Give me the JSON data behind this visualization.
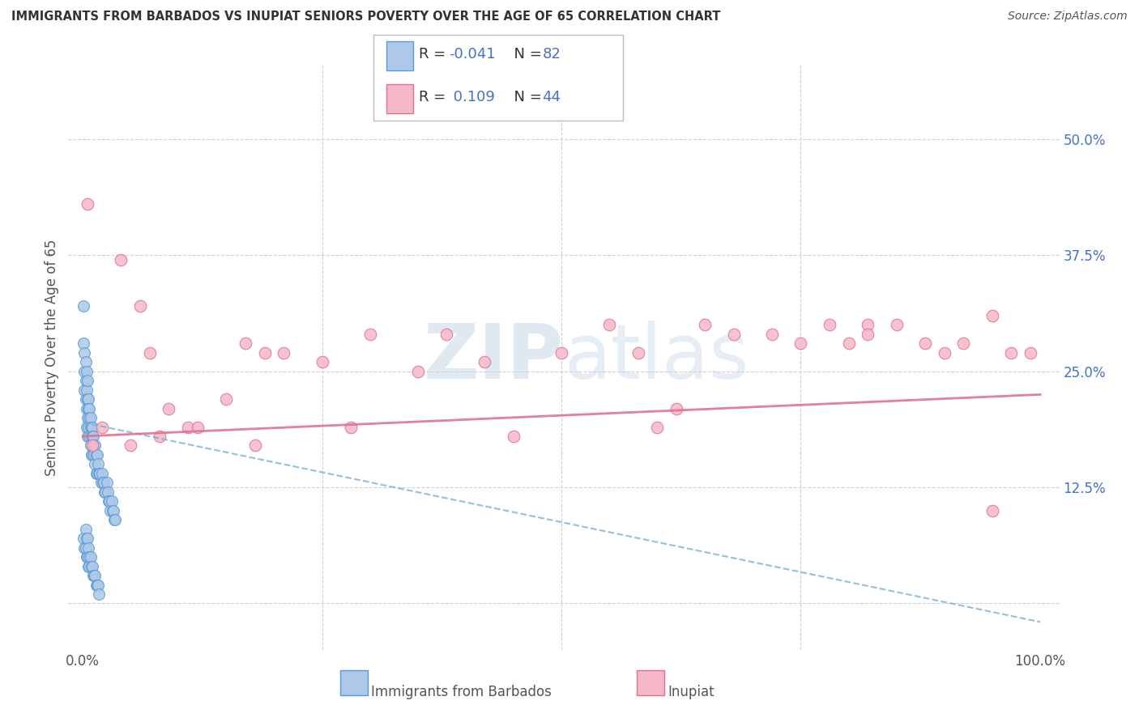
{
  "title": "IMMIGRANTS FROM BARBADOS VS INUPIAT SENIORS POVERTY OVER THE AGE OF 65 CORRELATION CHART",
  "source": "Source: ZipAtlas.com",
  "ylabel": "Seniors Poverty Over the Age of 65",
  "series1_name": "Immigrants from Barbados",
  "series1_color": "#adc8e8",
  "series1_edge_color": "#5b9bd5",
  "series1_R": -0.041,
  "series1_N": 82,
  "series2_name": "Inupiat",
  "series2_color": "#f5b8c8",
  "series2_edge_color": "#e07090",
  "series2_R": 0.109,
  "series2_N": 44,
  "trend1_color": "#7aafd4",
  "trend2_color": "#e07090",
  "background_color": "#ffffff",
  "series1_x": [
    0.001,
    0.001,
    0.002,
    0.002,
    0.002,
    0.003,
    0.003,
    0.003,
    0.004,
    0.004,
    0.004,
    0.004,
    0.005,
    0.005,
    0.005,
    0.005,
    0.006,
    0.006,
    0.006,
    0.007,
    0.007,
    0.007,
    0.008,
    0.008,
    0.008,
    0.009,
    0.009,
    0.009,
    0.01,
    0.01,
    0.01,
    0.011,
    0.011,
    0.012,
    0.012,
    0.013,
    0.013,
    0.014,
    0.014,
    0.015,
    0.015,
    0.016,
    0.017,
    0.018,
    0.019,
    0.02,
    0.021,
    0.022,
    0.023,
    0.024,
    0.025,
    0.026,
    0.027,
    0.028,
    0.029,
    0.03,
    0.031,
    0.032,
    0.033,
    0.034,
    0.001,
    0.002,
    0.003,
    0.003,
    0.004,
    0.004,
    0.005,
    0.005,
    0.006,
    0.006,
    0.007,
    0.007,
    0.008,
    0.009,
    0.01,
    0.011,
    0.012,
    0.013,
    0.014,
    0.015,
    0.016,
    0.017
  ],
  "series1_y": [
    0.32,
    0.28,
    0.27,
    0.25,
    0.23,
    0.26,
    0.24,
    0.22,
    0.25,
    0.23,
    0.21,
    0.19,
    0.24,
    0.22,
    0.2,
    0.18,
    0.22,
    0.21,
    0.19,
    0.21,
    0.2,
    0.18,
    0.2,
    0.19,
    0.17,
    0.19,
    0.18,
    0.16,
    0.19,
    0.18,
    0.16,
    0.18,
    0.17,
    0.17,
    0.16,
    0.17,
    0.15,
    0.16,
    0.14,
    0.16,
    0.14,
    0.15,
    0.14,
    0.14,
    0.13,
    0.14,
    0.13,
    0.13,
    0.12,
    0.12,
    0.13,
    0.12,
    0.11,
    0.11,
    0.1,
    0.11,
    0.1,
    0.1,
    0.09,
    0.09,
    0.07,
    0.06,
    0.08,
    0.06,
    0.07,
    0.05,
    0.07,
    0.05,
    0.06,
    0.04,
    0.05,
    0.04,
    0.05,
    0.04,
    0.04,
    0.03,
    0.03,
    0.03,
    0.02,
    0.02,
    0.02,
    0.01
  ],
  "series2_x": [
    0.005,
    0.01,
    0.04,
    0.06,
    0.07,
    0.09,
    0.11,
    0.15,
    0.17,
    0.19,
    0.21,
    0.25,
    0.3,
    0.35,
    0.38,
    0.42,
    0.5,
    0.55,
    0.58,
    0.62,
    0.65,
    0.68,
    0.72,
    0.75,
    0.78,
    0.8,
    0.82,
    0.85,
    0.88,
    0.9,
    0.92,
    0.95,
    0.97,
    0.99,
    0.02,
    0.05,
    0.08,
    0.12,
    0.18,
    0.28,
    0.45,
    0.6,
    0.82,
    0.95
  ],
  "series2_y": [
    0.43,
    0.17,
    0.37,
    0.32,
    0.27,
    0.21,
    0.19,
    0.22,
    0.28,
    0.27,
    0.27,
    0.26,
    0.29,
    0.25,
    0.29,
    0.26,
    0.27,
    0.3,
    0.27,
    0.21,
    0.3,
    0.29,
    0.29,
    0.28,
    0.3,
    0.28,
    0.3,
    0.3,
    0.28,
    0.27,
    0.28,
    0.31,
    0.27,
    0.27,
    0.19,
    0.17,
    0.18,
    0.19,
    0.17,
    0.19,
    0.18,
    0.19,
    0.29,
    0.1
  ],
  "trend1_x": [
    0.0,
    1.0
  ],
  "trend1_y": [
    0.195,
    -0.02
  ],
  "trend2_x": [
    0.0,
    1.0
  ],
  "trend2_y": [
    0.18,
    0.225
  ],
  "xlim": [
    -0.015,
    1.02
  ],
  "ylim": [
    -0.05,
    0.58
  ],
  "x_ticks": [
    0.0,
    0.25,
    0.5,
    0.75,
    1.0
  ],
  "x_tick_labels": [
    "0.0%",
    "",
    "",
    "",
    "100.0%"
  ],
  "y_ticks": [
    0.0,
    0.125,
    0.25,
    0.375,
    0.5
  ],
  "y_right_labels": [
    "",
    "12.5%",
    "25.0%",
    "37.5%",
    "50.0%"
  ]
}
